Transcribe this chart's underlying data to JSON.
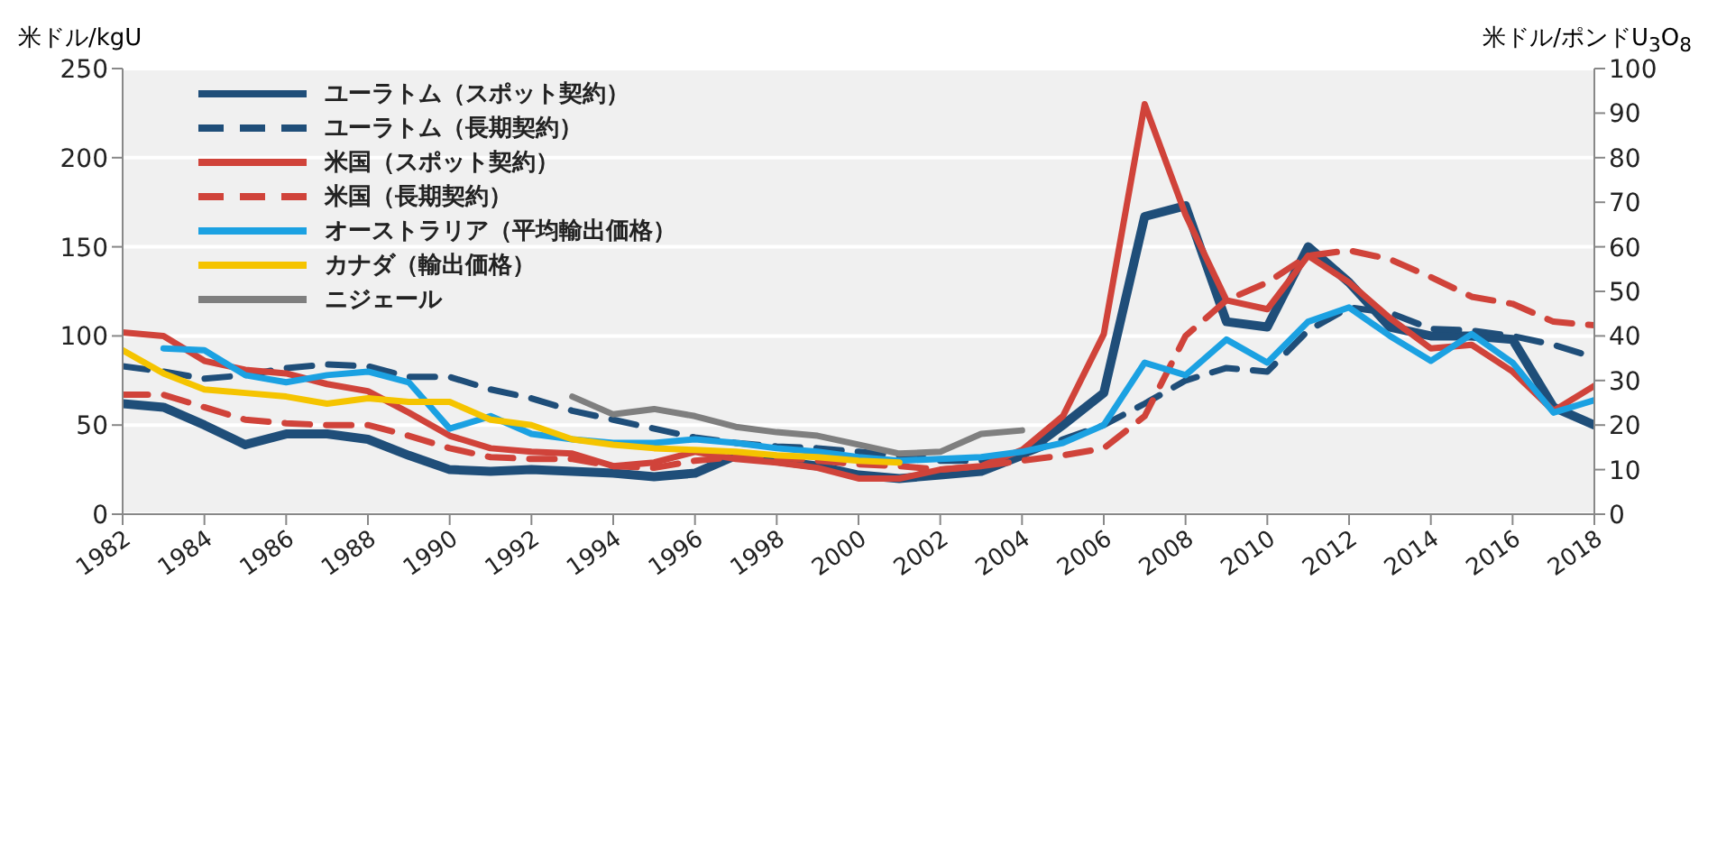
{
  "chart_data": {
    "type": "line",
    "ylabel": "米ドル/kgU",
    "y2label": "米ドル/ポンドU$_{3}$O$_{8}$",
    "x": [
      1982,
      1983,
      1984,
      1985,
      1986,
      1987,
      1988,
      1989,
      1990,
      1991,
      1992,
      1993,
      1994,
      1995,
      1996,
      1997,
      1998,
      1999,
      2000,
      2001,
      2002,
      2003,
      2004,
      2005,
      2006,
      2007,
      2008,
      2009,
      2010,
      2011,
      2012,
      2013,
      2014,
      2015,
      2016,
      2017,
      2018
    ],
    "xlim": [
      1982,
      2018
    ],
    "xticks": [
      1982,
      1984,
      1986,
      1988,
      1990,
      1992,
      1994,
      1996,
      1998,
      2000,
      2002,
      2004,
      2006,
      2008,
      2010,
      2012,
      2014,
      2016,
      2018
    ],
    "ylim": [
      0,
      250
    ],
    "yticks": [
      0,
      50,
      100,
      150,
      200,
      250
    ],
    "y2lim": [
      0,
      100
    ],
    "y2ticks": [
      0,
      10,
      20,
      30,
      40,
      50,
      60,
      70,
      80,
      90,
      100
    ],
    "grid": "y",
    "legend": "top left",
    "series": [
      {
        "name": "ユーラトム（スポット契約）",
        "color": "#1f4e79",
        "line_style": "solid",
        "values": [
          62,
          60,
          50,
          39,
          45,
          45,
          42,
          33,
          25,
          24,
          25,
          24,
          23,
          21,
          23,
          33,
          30,
          27,
          22,
          20,
          22,
          24,
          33,
          50,
          68,
          167,
          173,
          108,
          105,
          150,
          130,
          105,
          100,
          100,
          98,
          60,
          50
        ]
      },
      {
        "name": "ユーラトム（長期契約）",
        "color": "#1f4e79",
        "line_style": "dashed",
        "values": [
          83,
          80,
          76,
          78,
          82,
          84,
          83,
          77,
          77,
          70,
          65,
          58,
          53,
          48,
          43,
          40,
          38,
          37,
          35,
          33,
          30,
          30,
          33,
          42,
          50,
          62,
          75,
          82,
          80,
          103,
          116,
          113,
          104,
          103,
          100,
          95,
          88
        ]
      },
      {
        "name": "米国（スポット契約）",
        "color": "#d0433a",
        "line_style": "solid",
        "values": [
          102,
          100,
          86,
          81,
          79,
          73,
          69,
          57,
          44,
          37,
          35,
          34,
          27,
          29,
          35,
          31,
          29,
          26,
          20,
          20,
          25,
          27,
          36,
          55,
          101,
          230,
          168,
          120,
          115,
          145,
          130,
          110,
          93,
          95,
          80,
          58,
          72
        ]
      },
      {
        "name": "米国（長期契約）",
        "color": "#d0433a",
        "line_style": "dashed",
        "values": [
          67,
          67,
          60,
          53,
          51,
          50,
          50,
          44,
          37,
          32,
          31,
          31,
          27,
          26,
          30,
          32,
          32,
          30,
          28,
          27,
          25,
          27,
          30,
          33,
          37,
          55,
          100,
          120,
          130,
          145,
          148,
          143,
          133,
          122,
          118,
          108,
          106
        ]
      },
      {
        "name": "オーストラリア（平均輸出価格）",
        "color": "#1ba1e2",
        "line_style": "solid",
        "values": [
          null,
          93,
          92,
          78,
          74,
          78,
          80,
          74,
          48,
          55,
          45,
          42,
          40,
          40,
          42,
          40,
          37,
          35,
          32,
          30,
          31,
          32,
          35,
          40,
          50,
          85,
          78,
          98,
          85,
          108,
          116,
          100,
          86,
          101,
          85,
          57,
          64
        ]
      },
      {
        "name": "カナダ（輸出価格）",
        "color": "#f5c400",
        "line_style": "solid",
        "values": [
          92,
          79,
          70,
          68,
          66,
          62,
          65,
          63,
          63,
          53,
          50,
          42,
          39,
          37,
          36,
          35,
          33,
          32,
          30,
          29,
          null,
          null,
          null,
          null,
          null,
          null,
          null,
          null,
          null,
          null,
          null,
          null,
          null,
          null,
          null,
          null,
          null
        ]
      },
      {
        "name": "ニジェール",
        "color": "#7f7f7f",
        "line_style": "solid",
        "values": [
          null,
          null,
          null,
          null,
          null,
          null,
          null,
          null,
          null,
          null,
          null,
          66,
          56,
          59,
          55,
          49,
          46,
          44,
          39,
          34,
          35,
          45,
          47,
          null,
          null,
          null,
          null,
          null,
          null,
          null,
          null,
          null,
          null,
          null,
          null,
          null,
          null
        ]
      }
    ]
  }
}
